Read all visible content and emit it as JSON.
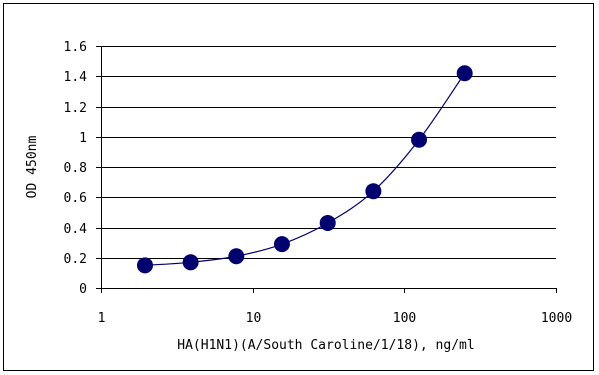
{
  "chart_data": {
    "type": "line",
    "title": "",
    "xlabel": "HA(H1N1)(A/South Caroline/1/18), ng/ml",
    "ylabel": "OD 450nm",
    "x_scale": "log",
    "xlim": [
      1,
      1000
    ],
    "ylim": [
      0,
      1.6
    ],
    "x_ticks": [
      1,
      10,
      100,
      1000
    ],
    "x_tick_labels": [
      "1",
      "10",
      "100",
      "1000"
    ],
    "y_ticks": [
      0,
      0.2,
      0.4,
      0.6,
      0.8,
      1,
      1.2,
      1.4,
      1.6
    ],
    "y_tick_labels": [
      "0",
      "0.2",
      "0.4",
      "0.6",
      "0.8",
      "1",
      "1.2",
      "1.4",
      "1.6"
    ],
    "grid": "horizontal",
    "legend": "none",
    "series": [
      {
        "x": [
          1.95,
          3.9,
          7.8,
          15.6,
          31.25,
          62.5,
          125,
          250
        ],
        "y": [
          0.15,
          0.17,
          0.21,
          0.29,
          0.43,
          0.64,
          0.98,
          1.42
        ]
      }
    ],
    "colors": {
      "marker": "#00006e",
      "line": "#00006e",
      "grid": "#000000"
    }
  }
}
